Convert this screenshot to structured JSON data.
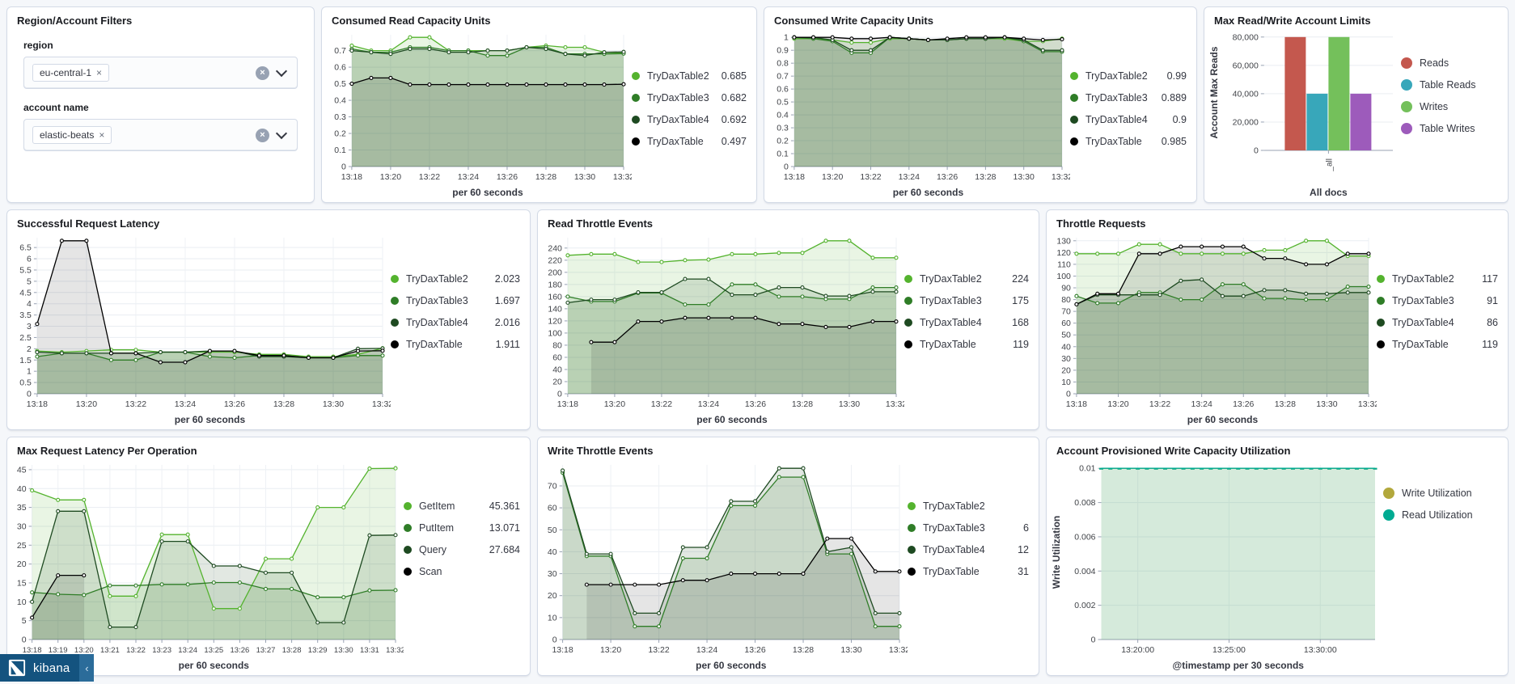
{
  "branding": {
    "product": "kibana",
    "collapse_glyph": "‹"
  },
  "filters": {
    "title": "Region/Account Filters",
    "fields": [
      {
        "label": "region",
        "value": "eu-central-1",
        "remove_glyph": "×"
      },
      {
        "label": "account name",
        "value": "elastic-beats",
        "remove_glyph": "×"
      }
    ]
  },
  "chart_data": [
    {
      "type": "line",
      "title": "Consumed Read Capacity Units",
      "caption": "per 60 seconds",
      "x_count": 15,
      "x_tick_labels": [
        "13:18",
        "13:20",
        "13:22",
        "13:24",
        "13:26",
        "13:28",
        "13:30",
        "13:32"
      ],
      "x_tick_positions": [
        0,
        2,
        4,
        6,
        8,
        10,
        12,
        14
      ],
      "y_ticks": [
        "0",
        "0.1",
        "0.2",
        "0.3",
        "0.4",
        "0.5",
        "0.6",
        "0.7"
      ],
      "series": [
        {
          "name": "TryDaxTable2",
          "legend_value": "0.685",
          "color": "#54b32e",
          "values": [
            0.73,
            0.7,
            0.7,
            0.78,
            0.78,
            0.7,
            0.7,
            0.7,
            0.7,
            0.72,
            0.73,
            0.72,
            0.72,
            0.69,
            0.685
          ]
        },
        {
          "name": "TryDaxTable3",
          "legend_value": "0.682",
          "color": "#2f7d27",
          "values": [
            0.71,
            0.69,
            0.69,
            0.72,
            0.72,
            0.7,
            0.7,
            0.67,
            0.67,
            0.72,
            0.72,
            0.68,
            0.68,
            0.68,
            0.682
          ]
        },
        {
          "name": "TryDaxTable4",
          "legend_value": "0.692",
          "color": "#1e4a21",
          "values": [
            0.7,
            0.69,
            0.68,
            0.71,
            0.71,
            0.69,
            0.69,
            0.7,
            0.7,
            0.72,
            0.71,
            0.68,
            0.67,
            0.69,
            0.692
          ]
        },
        {
          "name": "TryDaxTable",
          "legend_value": "0.497",
          "color": "#000000",
          "values": [
            0.5,
            0.535,
            0.535,
            0.495,
            0.495,
            0.495,
            0.495,
            0.495,
            0.495,
            0.495,
            0.495,
            0.495,
            0.495,
            0.495,
            0.497
          ]
        }
      ]
    },
    {
      "type": "line",
      "title": "Consumed Write Capacity Units",
      "caption": "per 60 seconds",
      "x_count": 15,
      "x_tick_labels": [
        "13:18",
        "13:20",
        "13:22",
        "13:24",
        "13:26",
        "13:28",
        "13:30",
        "13:32"
      ],
      "x_tick_positions": [
        0,
        2,
        4,
        6,
        8,
        10,
        12,
        14
      ],
      "y_ticks": [
        "0",
        "0.1",
        "0.2",
        "0.3",
        "0.4",
        "0.5",
        "0.6",
        "0.7",
        "0.8",
        "0.9",
        "1"
      ],
      "series": [
        {
          "name": "TryDaxTable2",
          "legend_value": "0.99",
          "color": "#54b32e",
          "values": [
            0.99,
            0.99,
            0.98,
            0.96,
            0.96,
            0.99,
            0.99,
            0.98,
            0.98,
            0.99,
            0.99,
            0.99,
            0.97,
            0.97,
            0.99
          ]
        },
        {
          "name": "TryDaxTable3",
          "legend_value": "0.889",
          "color": "#2f7d27",
          "values": [
            1,
            0.99,
            0.97,
            0.88,
            0.88,
            1,
            0.99,
            0.98,
            0.98,
            0.99,
            0.99,
            1,
            0.97,
            0.89,
            0.889
          ]
        },
        {
          "name": "TryDaxTable4",
          "legend_value": "0.9",
          "color": "#1e4a21",
          "values": [
            1,
            1,
            0.98,
            0.9,
            0.9,
            1,
            0.99,
            0.98,
            0.98,
            0.99,
            0.99,
            1,
            0.98,
            0.9,
            0.9
          ]
        },
        {
          "name": "TryDaxTable",
          "legend_value": "0.985",
          "color": "#000000",
          "values": [
            1,
            1,
            1,
            0.99,
            0.99,
            1,
            0.99,
            0.98,
            0.99,
            1,
            1,
            1,
            0.99,
            0.98,
            0.985
          ]
        }
      ]
    },
    {
      "type": "bar",
      "title": "Max Read/Write Account Limits",
      "caption": "All docs",
      "ylabel": "Account Max Reads",
      "x_category": "_all",
      "x_tick_rotate": true,
      "y_ticks": [
        "0",
        "20,000",
        "40,000",
        "60,000",
        "80,000"
      ],
      "series": [
        {
          "name": "Reads",
          "legend_value": "",
          "color": "#c4584e",
          "values": [
            80000
          ]
        },
        {
          "name": "Table Reads",
          "legend_value": "",
          "color": "#38a7ba",
          "values": [
            40000
          ]
        },
        {
          "name": "Writes",
          "legend_value": "",
          "color": "#74c05b",
          "values": [
            80000
          ]
        },
        {
          "name": "Table Writes",
          "legend_value": "",
          "color": "#9d5bbb",
          "values": [
            40000
          ]
        }
      ]
    },
    {
      "type": "line",
      "title": "Successful Request Latency",
      "caption": "per 60 seconds",
      "x_count": 15,
      "x_tick_labels": [
        "13:18",
        "13:20",
        "13:22",
        "13:24",
        "13:26",
        "13:28",
        "13:30",
        "13:32"
      ],
      "x_tick_positions": [
        0,
        2,
        4,
        6,
        8,
        10,
        12,
        14
      ],
      "y_ticks": [
        "0",
        "0.5",
        "1",
        "1.5",
        "2",
        "2.5",
        "3",
        "3.5",
        "4",
        "4.5",
        "5",
        "5.5",
        "6",
        "6.5"
      ],
      "series": [
        {
          "name": "TryDaxTable2",
          "legend_value": "2.023",
          "color": "#54b32e",
          "values": [
            1.9,
            1.85,
            1.9,
            1.95,
            1.95,
            1.85,
            1.85,
            1.85,
            1.85,
            1.75,
            1.75,
            1.65,
            1.65,
            1.75,
            2.023
          ]
        },
        {
          "name": "TryDaxTable3",
          "legend_value": "1.697",
          "color": "#2f7d27",
          "values": [
            1.65,
            1.8,
            1.8,
            1.5,
            1.5,
            1.85,
            1.85,
            1.65,
            1.6,
            1.7,
            1.7,
            1.6,
            1.6,
            1.7,
            1.697
          ]
        },
        {
          "name": "TryDaxTable4",
          "legend_value": "2.016",
          "color": "#1e4a21",
          "values": [
            1.85,
            1.8,
            1.8,
            1.8,
            1.8,
            1.85,
            1.85,
            1.9,
            1.9,
            1.65,
            1.65,
            1.6,
            1.6,
            2.0,
            2.016
          ]
        },
        {
          "name": "TryDaxTable",
          "legend_value": "1.911",
          "color": "#000000",
          "values": [
            3.1,
            6.8,
            6.8,
            1.8,
            1.8,
            1.4,
            1.4,
            1.9,
            1.9,
            1.7,
            1.7,
            1.6,
            1.6,
            1.9,
            1.911
          ]
        }
      ]
    },
    {
      "type": "line",
      "title": "Read Throttle Events",
      "caption": "per 60 seconds",
      "x_count": 15,
      "x_tick_labels": [
        "13:18",
        "13:20",
        "13:22",
        "13:24",
        "13:26",
        "13:28",
        "13:30",
        "13:32"
      ],
      "x_tick_positions": [
        0,
        2,
        4,
        6,
        8,
        10,
        12,
        14
      ],
      "y_ticks": [
        "0",
        "20",
        "40",
        "60",
        "80",
        "100",
        "120",
        "140",
        "160",
        "180",
        "200",
        "220",
        "240"
      ],
      "series": [
        {
          "name": "TryDaxTable2",
          "legend_value": "224",
          "color": "#54b32e",
          "values": [
            228,
            230,
            230,
            217,
            217,
            220,
            221,
            230,
            230,
            232,
            232,
            252,
            252,
            224,
            224
          ]
        },
        {
          "name": "TryDaxTable3",
          "legend_value": "175",
          "color": "#2f7d27",
          "values": [
            160,
            152,
            152,
            166,
            166,
            147,
            147,
            180,
            180,
            160,
            160,
            156,
            156,
            175,
            175
          ]
        },
        {
          "name": "TryDaxTable4",
          "legend_value": "168",
          "color": "#1e4a21",
          "values": [
            150,
            155,
            155,
            167,
            167,
            189,
            189,
            163,
            163,
            175,
            175,
            161,
            161,
            168,
            168
          ]
        },
        {
          "name": "TryDaxTable",
          "legend_value": "119",
          "color": "#000000",
          "values": [
            null,
            85,
            85,
            119,
            119,
            125,
            125,
            125,
            125,
            115,
            115,
            110,
            110,
            119,
            119
          ]
        }
      ]
    },
    {
      "type": "line",
      "title": "Throttle Requests",
      "caption": "per 60 seconds",
      "x_count": 15,
      "x_tick_labels": [
        "13:18",
        "13:20",
        "13:22",
        "13:24",
        "13:26",
        "13:28",
        "13:30",
        "13:32"
      ],
      "x_tick_positions": [
        0,
        2,
        4,
        6,
        8,
        10,
        12,
        14
      ],
      "y_ticks": [
        "0",
        "10",
        "20",
        "30",
        "40",
        "50",
        "60",
        "70",
        "80",
        "90",
        "100",
        "110",
        "120",
        "130"
      ],
      "series": [
        {
          "name": "TryDaxTable2",
          "legend_value": "117",
          "color": "#54b32e",
          "values": [
            119,
            119,
            119,
            127,
            127,
            119,
            119,
            119,
            119,
            122,
            122,
            130,
            130,
            117,
            117
          ]
        },
        {
          "name": "TryDaxTable3",
          "legend_value": "91",
          "color": "#2f7d27",
          "values": [
            83,
            77,
            77,
            86,
            86,
            80,
            80,
            93,
            93,
            81,
            81,
            80,
            80,
            91,
            91
          ]
        },
        {
          "name": "TryDaxTable4",
          "legend_value": "86",
          "color": "#1e4a21",
          "values": [
            76,
            84,
            84,
            84,
            84,
            96,
            97,
            83,
            83,
            88,
            88,
            85,
            85,
            86,
            86
          ]
        },
        {
          "name": "TryDaxTable",
          "legend_value": "119",
          "color": "#000000",
          "values": [
            76,
            85,
            85,
            119,
            119,
            125,
            125,
            125,
            125,
            115,
            115,
            110,
            110,
            119,
            119
          ]
        }
      ]
    },
    {
      "type": "line",
      "title": "Max Request Latency Per Operation",
      "caption": "per 60 seconds",
      "x_count": 15,
      "x_tick_labels": [
        "13:18",
        "13:19",
        "13:20",
        "13:21",
        "13:22",
        "13:23",
        "13:24",
        "13:25",
        "13:26",
        "13:27",
        "13:28",
        "13:29",
        "13:30",
        "13:31",
        "13:32"
      ],
      "x_tick_positions": [
        0,
        1,
        2,
        3,
        4,
        5,
        6,
        7,
        8,
        9,
        10,
        11,
        12,
        13,
        14
      ],
      "y_ticks": [
        "0",
        "5",
        "10",
        "15",
        "20",
        "25",
        "30",
        "35",
        "40",
        "45"
      ],
      "series": [
        {
          "name": "GetItem",
          "legend_value": "45.361",
          "color": "#54b32e",
          "values": [
            39.5,
            37,
            37,
            11.5,
            11.5,
            27.8,
            27.8,
            8.2,
            8.2,
            21.4,
            21.4,
            35,
            35,
            45.3,
            45.361
          ]
        },
        {
          "name": "PutItem",
          "legend_value": "13.071",
          "color": "#2f7d27",
          "values": [
            12.5,
            12,
            11.8,
            14.3,
            14.3,
            14.6,
            14.6,
            15.1,
            15.1,
            13.4,
            13.4,
            11.2,
            11.2,
            13,
            13.071
          ]
        },
        {
          "name": "Query",
          "legend_value": "27.684",
          "color": "#1e4a21",
          "values": [
            10,
            34,
            34,
            3.3,
            3.3,
            26,
            26,
            19.5,
            19.5,
            17.7,
            17.7,
            4.5,
            4.5,
            27.6,
            27.684
          ]
        },
        {
          "name": "Scan",
          "legend_value": "",
          "color": "#000000",
          "values": [
            5.8,
            17,
            17,
            null,
            null,
            null,
            null,
            null,
            null,
            null,
            null,
            null,
            null,
            null,
            null
          ]
        }
      ]
    },
    {
      "type": "line",
      "title": "Write Throttle Events",
      "caption": "per 60 seconds",
      "x_count": 15,
      "x_tick_labels": [
        "13:18",
        "13:20",
        "13:22",
        "13:24",
        "13:26",
        "13:28",
        "13:30",
        "13:32"
      ],
      "x_tick_positions": [
        0,
        2,
        4,
        6,
        8,
        10,
        12,
        14
      ],
      "y_ticks": [
        "0",
        "10",
        "20",
        "30",
        "40",
        "50",
        "60",
        "70"
      ],
      "series": [
        {
          "name": "TryDaxTable2",
          "legend_value": "",
          "color": "#54b32e",
          "values": [
            null,
            null,
            null,
            null,
            null,
            null,
            null,
            null,
            null,
            null,
            null,
            null,
            null,
            null,
            null
          ]
        },
        {
          "name": "TryDaxTable3",
          "legend_value": "6",
          "color": "#2f7d27",
          "values": [
            76,
            38,
            38,
            6,
            6,
            37,
            37,
            61,
            61,
            74,
            74,
            39,
            39,
            6,
            6
          ]
        },
        {
          "name": "TryDaxTable4",
          "legend_value": "12",
          "color": "#1e4a21",
          "values": [
            77,
            39,
            39,
            12,
            12,
            42,
            42,
            63,
            63,
            78,
            78,
            40,
            42,
            12,
            12
          ]
        },
        {
          "name": "TryDaxTable",
          "legend_value": "31",
          "color": "#000000",
          "values": [
            null,
            25,
            25,
            25,
            25,
            27,
            27,
            30,
            30,
            30,
            30,
            46,
            46,
            31,
            31
          ]
        }
      ]
    },
    {
      "type": "line",
      "title": "Account Provisioned Write Capacity Utilization",
      "caption": "@timestamp per 30 seconds",
      "ylabel": "Write Utilization",
      "marker": "dash",
      "x_count": 31,
      "x_tick_labels": [
        "13:20:00",
        "13:25:00",
        "13:30:00"
      ],
      "x_tick_positions": [
        4,
        14,
        24
      ],
      "y_ticks": [
        "0",
        "0.002",
        "0.004",
        "0.006",
        "0.008",
        "0.01"
      ],
      "series": [
        {
          "name": "Write Utilization",
          "legend_value": "",
          "color": "#b2a83c",
          "values": [
            0.01,
            0.01,
            0.01,
            0.01,
            0.01,
            0.01,
            0.01,
            0.01,
            0.01,
            0.01,
            0.01,
            0.01,
            0.01,
            0.01,
            0.01,
            0.01,
            0.01,
            0.01,
            0.01,
            0.01,
            0.01,
            0.01,
            0.01,
            0.01,
            0.01,
            0.01,
            0.01,
            0.01,
            0.01,
            0.01,
            0.01
          ]
        },
        {
          "name": "Read Utilization",
          "legend_value": "",
          "color": "#00ab92",
          "values": [
            0.01,
            0.01,
            0.01,
            0.01,
            0.01,
            0.01,
            0.01,
            0.01,
            0.01,
            0.01,
            0.01,
            0.01,
            0.01,
            0.01,
            0.01,
            0.01,
            0.01,
            0.01,
            0.01,
            0.01,
            0.01,
            0.01,
            0.01,
            0.01,
            0.01,
            0.01,
            0.01,
            0.01,
            0.01,
            0.01,
            0.01
          ]
        }
      ]
    }
  ]
}
